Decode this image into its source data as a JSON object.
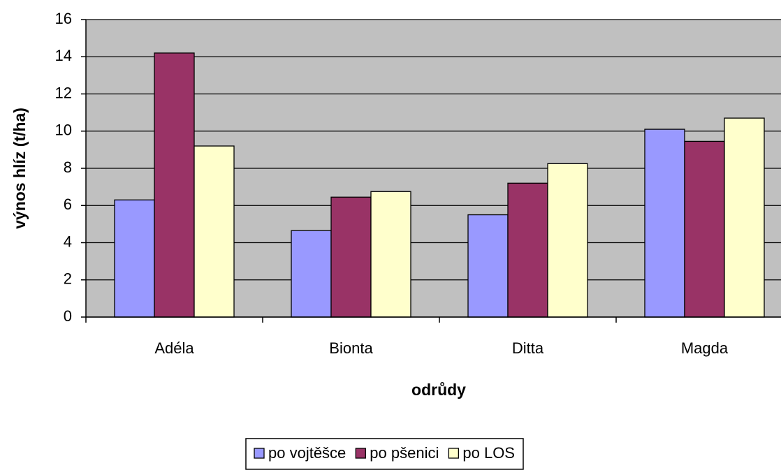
{
  "chart_data": {
    "type": "bar",
    "categories": [
      "Adéla",
      "Bionta",
      "Ditta",
      "Magda"
    ],
    "series": [
      {
        "name": "po vojtěšce",
        "color": "#9999ff",
        "values": [
          6.3,
          4.65,
          5.5,
          10.1
        ]
      },
      {
        "name": "po pšenici",
        "color": "#993366",
        "values": [
          14.2,
          6.45,
          7.2,
          9.45
        ]
      },
      {
        "name": "po LOS",
        "color": "#ffffcc",
        "values": [
          9.2,
          6.75,
          8.25,
          10.7
        ]
      }
    ],
    "x_label": "odrůdy",
    "y_label": "výnos hlíz (t/ha)",
    "ylim": [
      0,
      16
    ],
    "yticks": [
      0,
      2,
      4,
      6,
      8,
      10,
      12,
      14,
      16
    ],
    "grid": true,
    "plot_background": "#c0c0c0",
    "legend": "bottom"
  }
}
